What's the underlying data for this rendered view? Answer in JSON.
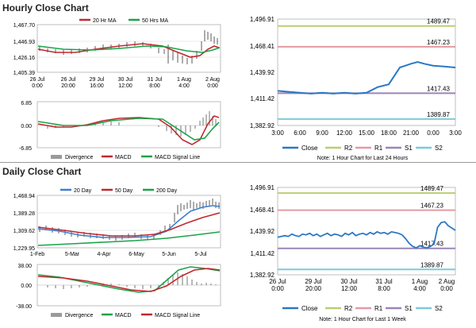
{
  "hourly": {
    "title": "Hourly Close Chart",
    "price": {
      "y_ticks": [
        "1,467.70",
        "1,446.93",
        "1,426.16",
        "1,405.39"
      ],
      "x_ticks": [
        "26 Jul\n0:00",
        "26 Jul\n20:00",
        "29 Jul\n16:00",
        "30 Jul\n12:00",
        "31 Jul\n8:00",
        "1 Aug\n4:00",
        "2 Aug\n0:00"
      ],
      "legend": [
        {
          "label": "20 Hr MA",
          "color": "#c0282d"
        },
        {
          "label": "50 Hrs MA",
          "color": "#1aa34a"
        }
      ]
    },
    "macd": {
      "y_ticks": [
        "6.85",
        "0.00",
        "-6.85"
      ],
      "legend": [
        {
          "label": "Divergence",
          "color": "#9a9a9a"
        },
        {
          "label": "MACD",
          "color": "#c0282d"
        },
        {
          "label": "MACD Signal Line",
          "color": "#1aa34a"
        }
      ]
    }
  },
  "daily": {
    "title": "Daily Close Chart",
    "price": {
      "y_ticks": [
        "1,468.94",
        "1,389.28",
        "1,309.62",
        "1,229.95"
      ],
      "x_ticks": [
        "1-Feb",
        "5-Mar",
        "4-Apr",
        "6-May",
        "5-Jun",
        "5-Jul"
      ],
      "legend": [
        {
          "label": "20 Day",
          "color": "#3c7fd0"
        },
        {
          "label": "50 Day",
          "color": "#c0282d"
        },
        {
          "label": "200 Day",
          "color": "#1aa34a"
        }
      ]
    },
    "macd": {
      "y_ticks": [
        "38.00",
        "0.00",
        "-38.00"
      ],
      "legend": [
        {
          "label": "Divergence",
          "color": "#9a9a9a"
        },
        {
          "label": "MACD",
          "color": "#1aa34a"
        },
        {
          "label": "MACD Signal Line",
          "color": "#c0282d"
        }
      ]
    }
  },
  "chart_data": [
    {
      "id": "hourly_levels",
      "type": "line",
      "y_ticks": [
        "1,496.91",
        "1,468.41",
        "1,439.92",
        "1,411.42",
        "1,382.92"
      ],
      "ylim": [
        1382.92,
        1496.91
      ],
      "x_ticks": [
        "3:00",
        "6:00",
        "9:00",
        "12:00",
        "15:00",
        "18:00",
        "21:00",
        "0:00",
        "3:00"
      ],
      "levels": [
        {
          "name": "R2",
          "value": 1489.47,
          "label": "1489.47",
          "color": "#b8cf72"
        },
        {
          "name": "R1",
          "value": 1467.23,
          "label": "1467.23",
          "color": "#e39aa3"
        },
        {
          "name": "S1",
          "value": 1417.43,
          "label": "1417.43",
          "color": "#9a86b8"
        },
        {
          "name": "S2",
          "value": 1389.87,
          "label": "1389.87",
          "color": "#7fc9d8"
        }
      ],
      "close": {
        "name": "Close",
        "color": "#2b78c2",
        "x": [
          0,
          0.5,
          1,
          1.5,
          2,
          2.5,
          3,
          3.5,
          4,
          4.5,
          5,
          5.5,
          6,
          6.3,
          6.6,
          7,
          7.5,
          8
        ],
        "y": [
          1420,
          1419,
          1418,
          1417,
          1418,
          1417,
          1418,
          1417,
          1418,
          1424,
          1427,
          1445,
          1449,
          1451,
          1449,
          1447,
          1446,
          1445
        ]
      },
      "legend": [
        {
          "label": "Close",
          "color": "#2b78c2"
        },
        {
          "label": "R2",
          "color": "#b8cf72"
        },
        {
          "label": "R1",
          "color": "#e39aa3"
        },
        {
          "label": "S1",
          "color": "#9a86b8"
        },
        {
          "label": "S2",
          "color": "#7fc9d8"
        }
      ],
      "note": "Note: 1 Hour Chart for Last 24 Hours"
    },
    {
      "id": "daily_levels",
      "type": "line",
      "y_ticks": [
        "1,496.91",
        "1,468.41",
        "1,439.92",
        "1,411.42",
        "1,382.92"
      ],
      "ylim": [
        1382.92,
        1496.91
      ],
      "x_ticks": [
        "26 Jul\n0:00",
        "29 Jul\n20:00",
        "30 Jul\n12:00",
        "31 Jul\n8:00",
        "1 Aug\n4:00",
        "2 Aug\n0:00"
      ],
      "levels": [
        {
          "name": "R2",
          "value": 1489.47,
          "label": "1489.47",
          "color": "#b8cf72"
        },
        {
          "name": "R1",
          "value": 1467.23,
          "label": "1467.23",
          "color": "#e39aa3"
        },
        {
          "name": "S1",
          "value": 1417.43,
          "label": "1417.43",
          "color": "#9a86b8"
        },
        {
          "name": "S2",
          "value": 1389.87,
          "label": "1389.87",
          "color": "#7fc9d8"
        }
      ],
      "close": {
        "name": "Close",
        "color": "#2b78c2",
        "x": [
          0,
          0.1,
          0.2,
          0.3,
          0.4,
          0.5,
          0.6,
          0.7,
          0.8,
          0.9,
          1.0,
          1.1,
          1.2,
          1.3,
          1.4,
          1.5,
          1.6,
          1.7,
          1.8,
          1.9,
          2.0,
          2.1,
          2.2,
          2.3,
          2.4,
          2.5,
          2.6,
          2.7,
          2.8,
          2.9,
          3.0,
          3.1,
          3.2,
          3.3,
          3.4,
          3.5,
          3.6,
          3.7,
          3.8,
          3.9,
          4.0,
          4.1,
          4.2,
          4.3,
          4.4,
          4.5,
          4.6,
          4.7,
          4.8,
          4.9,
          5.0
        ],
        "y": [
          1432,
          1433,
          1434,
          1433,
          1436,
          1434,
          1433,
          1436,
          1435,
          1437,
          1434,
          1436,
          1433,
          1435,
          1437,
          1434,
          1436,
          1435,
          1433,
          1437,
          1435,
          1438,
          1434,
          1436,
          1437,
          1435,
          1438,
          1436,
          1439,
          1437,
          1438,
          1436,
          1439,
          1438,
          1437,
          1435,
          1430,
          1424,
          1420,
          1418,
          1421,
          1419,
          1418,
          1420,
          1423,
          1445,
          1451,
          1452,
          1447,
          1444,
          1441
        ]
      },
      "legend": [
        {
          "label": "Close",
          "color": "#2b78c2"
        },
        {
          "label": "R2",
          "color": "#b8cf72"
        },
        {
          "label": "R1",
          "color": "#e39aa3"
        },
        {
          "label": "S1",
          "color": "#9a86b8"
        },
        {
          "label": "S2",
          "color": "#7fc9d8"
        }
      ],
      "note": "Note: 1 Hour Chart for Last 1 Week"
    }
  ]
}
